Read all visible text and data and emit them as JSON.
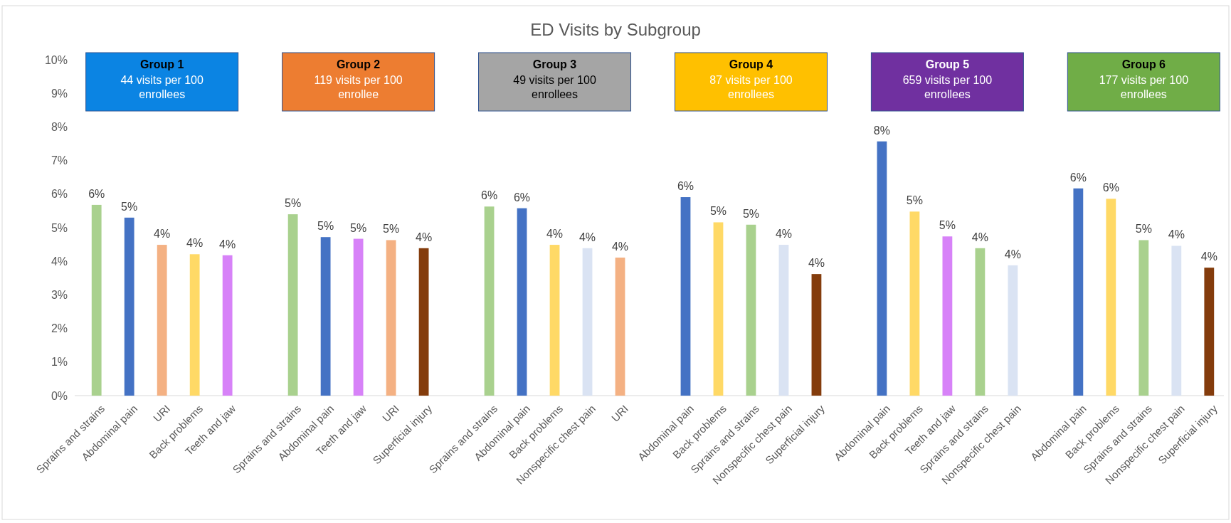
{
  "chart_data": {
    "type": "bar",
    "title": "ED Visits by Subgroup",
    "categories": [
      "Sprains and strains",
      "Abdominal pain",
      "URI",
      "Back problems",
      "Teeth and jaw",
      null,
      "Sprains and strains",
      "Abdominal pain",
      "Teeth and jaw",
      "URI",
      "Superficial injury",
      null,
      "Sprains and strains",
      "Abdominal pain",
      "Back problems",
      "Nonspecific chest pain",
      "URI",
      null,
      "Abdominal pain",
      "Back problems",
      "Sprains and strains",
      "Nonspecific chest pain",
      "Superficial injury",
      null,
      "Abdominal pain",
      "Back problems",
      "Teeth and jaw",
      "Sprains and strains",
      "Nonspecific chest pain",
      null,
      "Abdominal pain",
      "Back problems",
      "Sprains and strains",
      "Nonspecific chest pain",
      "Superficial injury"
    ],
    "values": [
      5.68,
      5.3,
      4.49,
      4.21,
      4.18,
      null,
      5.4,
      4.72,
      4.67,
      4.63,
      4.39,
      null,
      5.63,
      5.58,
      4.49,
      4.39,
      4.11,
      null,
      5.91,
      5.16,
      5.09,
      4.49,
      3.62,
      null,
      7.57,
      5.48,
      4.74,
      4.39,
      3.88,
      null,
      6.17,
      5.86,
      4.63,
      4.46,
      3.81
    ],
    "value_labels": [
      "6%",
      "5%",
      "4%",
      "4%",
      "4%",
      null,
      "5%",
      "5%",
      "5%",
      "5%",
      "4%",
      null,
      "6%",
      "6%",
      "4%",
      "4%",
      "4%",
      null,
      "6%",
      "5%",
      "5%",
      "4%",
      "4%",
      null,
      "8%",
      "5%",
      "5%",
      "4%",
      "4%",
      null,
      "6%",
      "6%",
      "5%",
      "4%",
      "4%"
    ],
    "colors": [
      "#a9d18e",
      "#4472c4",
      "#f4b183",
      "#ffd966",
      "#d782f8",
      null,
      "#a9d18e",
      "#4472c4",
      "#d782f8",
      "#f4b183",
      "#843c0c",
      null,
      "#a9d18e",
      "#4472c4",
      "#ffd966",
      "#dae3f3",
      "#f4b183",
      null,
      "#4472c4",
      "#ffd966",
      "#a9d18e",
      "#dae3f3",
      "#843c0c",
      null,
      "#4472c4",
      "#ffd966",
      "#d782f8",
      "#a9d18e",
      "#dae3f3",
      null,
      "#4472c4",
      "#ffd966",
      "#a9d18e",
      "#dae3f3",
      "#843c0c"
    ],
    "ylim": [
      0,
      10
    ],
    "yticks": [
      {
        "value": 0,
        "label": "0%"
      },
      {
        "value": 1,
        "label": "1%"
      },
      {
        "value": 2,
        "label": "2%"
      },
      {
        "value": 3,
        "label": "3%"
      },
      {
        "value": 4,
        "label": "4%"
      },
      {
        "value": 5,
        "label": "5%"
      },
      {
        "value": 6,
        "label": "6%"
      },
      {
        "value": 7,
        "label": "7%"
      },
      {
        "value": 8,
        "label": "8%"
      },
      {
        "value": 9,
        "label": "9%"
      },
      {
        "value": 10,
        "label": "10%"
      }
    ],
    "grid": false,
    "annotations": [
      "Group 1",
      "44 visits per 100 enrollees",
      "Group 2",
      "119 visits per 100 enrollee",
      "Group 3",
      "49 visits per 100 enrollees",
      "Group 4",
      "87 visits per 100 enrollees",
      "Group 5",
      "659 visits per 100 enrollees",
      "Group 6",
      "177 visits per 100 enrollees"
    ]
  }
}
